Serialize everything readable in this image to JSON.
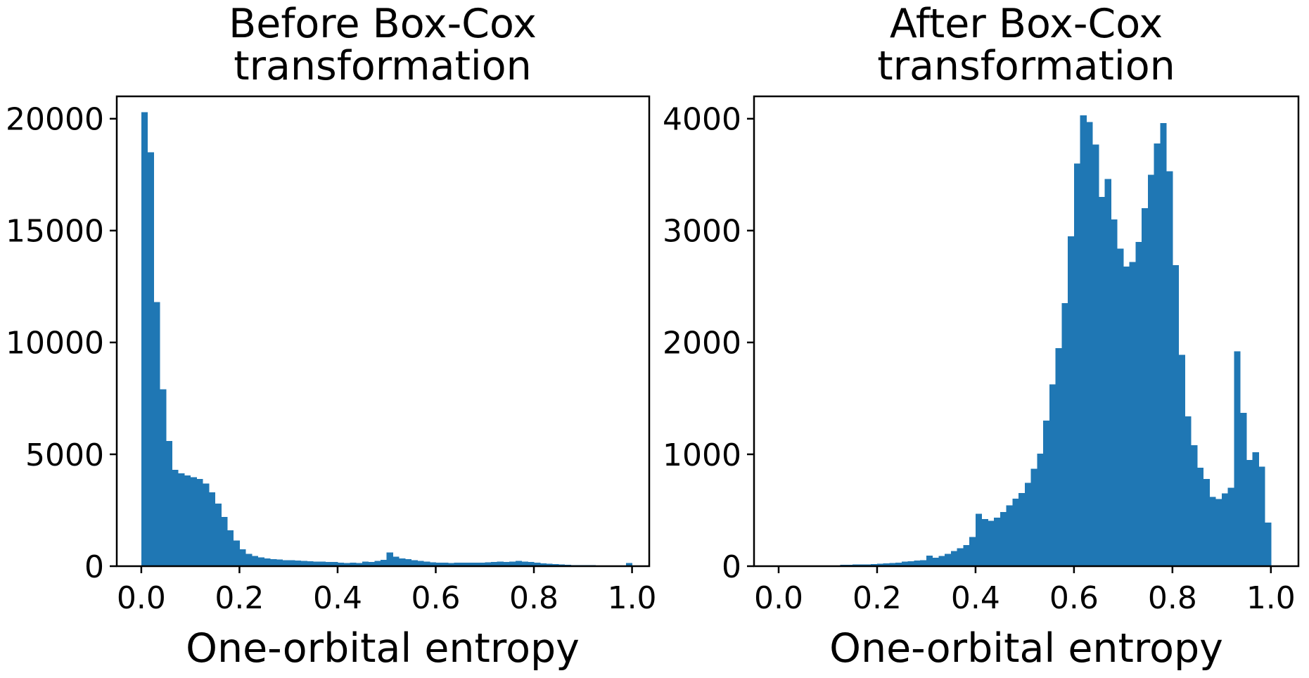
{
  "figure": {
    "background": "#ffffff",
    "bar_color": "#1f77b4",
    "axis_color": "#000000",
    "panels_meta": [
      {
        "title_line1": "Before Box-Cox",
        "title_line2": "transformation",
        "xlabel": "One-orbital entropy"
      },
      {
        "title_line1": "After Box-Cox",
        "title_line2": "transformation",
        "xlabel": "One-orbital entropy"
      }
    ]
  },
  "chart_data": [
    {
      "type": "bar",
      "subtype": "histogram",
      "title": "Before Box-Cox transformation",
      "xlabel": "One-orbital entropy",
      "ylabel": "",
      "bin_start": 0.0,
      "bin_width": 0.0125,
      "values": [
        20300,
        18500,
        11800,
        7900,
        5600,
        4300,
        4150,
        4050,
        3980,
        3900,
        3700,
        3300,
        2800,
        2200,
        1600,
        1150,
        750,
        550,
        450,
        390,
        350,
        320,
        295,
        275,
        260,
        245,
        232,
        222,
        212,
        202,
        194,
        185,
        160,
        148,
        162,
        148,
        200,
        195,
        240,
        290,
        610,
        430,
        345,
        310,
        270,
        240,
        200,
        175,
        160,
        150,
        145,
        150,
        155,
        160,
        165,
        160,
        170,
        185,
        200,
        190,
        200,
        230,
        210,
        190,
        160,
        130,
        110,
        90,
        75,
        65,
        55,
        50,
        45,
        40,
        35,
        35,
        30,
        30,
        35,
        140
      ],
      "xlim": [
        -0.05,
        1.035
      ],
      "ylim": [
        0,
        21000
      ],
      "xticks": [
        0.0,
        0.2,
        0.4,
        0.6,
        0.8,
        1.0
      ],
      "xtick_labels": [
        "0.0",
        "0.2",
        "0.4",
        "0.6",
        "0.8",
        "1.0"
      ],
      "yticks": [
        0,
        5000,
        10000,
        15000,
        20000
      ],
      "ytick_labels": [
        "0",
        "5000",
        "10000",
        "15000",
        "20000"
      ],
      "grid": false,
      "legend": null,
      "bar_color": "#1f77b4"
    },
    {
      "type": "bar",
      "subtype": "histogram",
      "title": "After Box-Cox transformation",
      "xlabel": "One-orbital entropy",
      "ylabel": "",
      "bin_start": 0.0,
      "bin_width": 0.0125,
      "values": [
        0,
        0,
        0,
        0,
        0,
        0,
        0,
        0,
        0,
        0,
        12,
        14,
        15,
        16,
        17,
        18,
        22,
        25,
        28,
        30,
        40,
        45,
        50,
        55,
        95,
        75,
        90,
        110,
        135,
        160,
        190,
        260,
        470,
        420,
        405,
        435,
        485,
        545,
        605,
        655,
        745,
        870,
        1005,
        1300,
        1625,
        1950,
        2350,
        2950,
        3600,
        4030,
        3970,
        3770,
        3300,
        3460,
        3100,
        2840,
        2680,
        2720,
        2900,
        3200,
        3500,
        3780,
        3960,
        3530,
        2690,
        1890,
        1340,
        1080,
        880,
        780,
        620,
        600,
        650,
        700,
        1920,
        1370,
        950,
        1020,
        890,
        390
      ],
      "xlim": [
        -0.05,
        1.056
      ],
      "ylim": [
        0,
        4200
      ],
      "xticks": [
        0.0,
        0.2,
        0.4,
        0.6,
        0.8,
        1.0
      ],
      "xtick_labels": [
        "0.0",
        "0.2",
        "0.4",
        "0.6",
        "0.8",
        "1.0"
      ],
      "yticks": [
        0,
        1000,
        2000,
        3000,
        4000
      ],
      "ytick_labels": [
        "0",
        "1000",
        "2000",
        "3000",
        "4000"
      ],
      "grid": false,
      "legend": null,
      "bar_color": "#1f77b4"
    }
  ]
}
